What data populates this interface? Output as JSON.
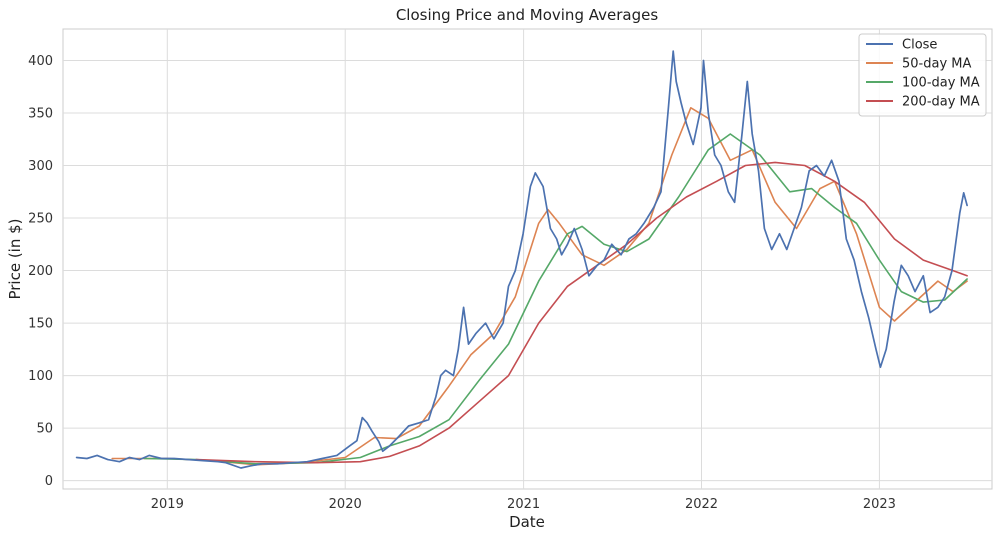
{
  "chart_data": {
    "type": "line",
    "title": "Closing Price and Moving Averages",
    "xlabel": "Date",
    "ylabel": "Price (in $)",
    "x_ticks": [
      "2019",
      "2020",
      "2021",
      "2022",
      "2023"
    ],
    "y_ticks": [
      0,
      50,
      100,
      150,
      200,
      250,
      300,
      350,
      400
    ],
    "xlim": [
      "2018-06-01",
      "2023-08-20"
    ],
    "ylim": [
      -8,
      430
    ],
    "grid": true,
    "legend_position": "top-right",
    "series": [
      {
        "name": "Close",
        "color": "#4c72b0",
        "points": [
          [
            "2018-06-29",
            22
          ],
          [
            "2018-07-20",
            21
          ],
          [
            "2018-08-10",
            24
          ],
          [
            "2018-09-01",
            20
          ],
          [
            "2018-09-25",
            18
          ],
          [
            "2018-10-15",
            22
          ],
          [
            "2018-11-05",
            20
          ],
          [
            "2018-11-25",
            24
          ],
          [
            "2018-12-20",
            21
          ],
          [
            "2019-01-15",
            21
          ],
          [
            "2019-02-15",
            20
          ],
          [
            "2019-03-15",
            19
          ],
          [
            "2019-04-15",
            18
          ],
          [
            "2019-05-01",
            17
          ],
          [
            "2019-06-01",
            12
          ],
          [
            "2019-06-20",
            14
          ],
          [
            "2019-07-15",
            16
          ],
          [
            "2019-08-15",
            16
          ],
          [
            "2019-09-15",
            17
          ],
          [
            "2019-10-15",
            18
          ],
          [
            "2019-11-15",
            21
          ],
          [
            "2019-12-15",
            24
          ],
          [
            "2020-01-10",
            33
          ],
          [
            "2020-01-25",
            38
          ],
          [
            "2020-02-05",
            60
          ],
          [
            "2020-02-15",
            55
          ],
          [
            "2020-02-25",
            47
          ],
          [
            "2020-03-10",
            37
          ],
          [
            "2020-03-18",
            28
          ],
          [
            "2020-04-01",
            33
          ],
          [
            "2020-04-20",
            42
          ],
          [
            "2020-05-10",
            52
          ],
          [
            "2020-06-01",
            55
          ],
          [
            "2020-06-20",
            58
          ],
          [
            "2020-07-05",
            80
          ],
          [
            "2020-07-15",
            100
          ],
          [
            "2020-07-25",
            105
          ],
          [
            "2020-08-10",
            100
          ],
          [
            "2020-08-20",
            125
          ],
          [
            "2020-08-31",
            165
          ],
          [
            "2020-09-10",
            130
          ],
          [
            "2020-09-25",
            140
          ],
          [
            "2020-10-15",
            150
          ],
          [
            "2020-11-01",
            135
          ],
          [
            "2020-11-20",
            150
          ],
          [
            "2020-12-01",
            185
          ],
          [
            "2020-12-15",
            200
          ],
          [
            "2020-12-31",
            235
          ],
          [
            "2021-01-15",
            280
          ],
          [
            "2021-01-25",
            293
          ],
          [
            "2021-02-10",
            280
          ],
          [
            "2021-02-25",
            240
          ],
          [
            "2021-03-10",
            230
          ],
          [
            "2021-03-20",
            215
          ],
          [
            "2021-04-01",
            225
          ],
          [
            "2021-04-15",
            240
          ],
          [
            "2021-05-01",
            220
          ],
          [
            "2021-05-15",
            195
          ],
          [
            "2021-06-01",
            205
          ],
          [
            "2021-06-15",
            210
          ],
          [
            "2021-07-01",
            225
          ],
          [
            "2021-07-20",
            215
          ],
          [
            "2021-08-05",
            230
          ],
          [
            "2021-08-20",
            235
          ],
          [
            "2021-09-05",
            245
          ],
          [
            "2021-09-25",
            260
          ],
          [
            "2021-10-10",
            275
          ],
          [
            "2021-10-25",
            355
          ],
          [
            "2021-11-04",
            409
          ],
          [
            "2021-11-10",
            380
          ],
          [
            "2021-11-20",
            360
          ],
          [
            "2021-12-01",
            340
          ],
          [
            "2021-12-15",
            320
          ],
          [
            "2021-12-31",
            355
          ],
          [
            "2022-01-05",
            400
          ],
          [
            "2022-01-15",
            350
          ],
          [
            "2022-01-28",
            310
          ],
          [
            "2022-02-10",
            300
          ],
          [
            "2022-02-25",
            275
          ],
          [
            "2022-03-10",
            265
          ],
          [
            "2022-03-25",
            330
          ],
          [
            "2022-04-05",
            380
          ],
          [
            "2022-04-15",
            330
          ],
          [
            "2022-04-28",
            295
          ],
          [
            "2022-05-10",
            240
          ],
          [
            "2022-05-25",
            220
          ],
          [
            "2022-06-10",
            235
          ],
          [
            "2022-06-25",
            220
          ],
          [
            "2022-07-10",
            240
          ],
          [
            "2022-07-25",
            260
          ],
          [
            "2022-08-10",
            295
          ],
          [
            "2022-08-25",
            300
          ],
          [
            "2022-09-10",
            290
          ],
          [
            "2022-09-25",
            305
          ],
          [
            "2022-10-10",
            285
          ],
          [
            "2022-10-25",
            230
          ],
          [
            "2022-11-10",
            210
          ],
          [
            "2022-11-25",
            180
          ],
          [
            "2022-12-10",
            155
          ],
          [
            "2022-12-25",
            125
          ],
          [
            "2023-01-03",
            108
          ],
          [
            "2023-01-15",
            125
          ],
          [
            "2023-01-31",
            170
          ],
          [
            "2023-02-15",
            205
          ],
          [
            "2023-03-01",
            195
          ],
          [
            "2023-03-15",
            180
          ],
          [
            "2023-04-01",
            195
          ],
          [
            "2023-04-15",
            160
          ],
          [
            "2023-05-01",
            165
          ],
          [
            "2023-05-15",
            175
          ],
          [
            "2023-05-30",
            200
          ],
          [
            "2023-06-15",
            255
          ],
          [
            "2023-06-23",
            274
          ],
          [
            "2023-06-30",
            262
          ]
        ]
      },
      {
        "name": "50-day MA",
        "color": "#dd8452",
        "points": [
          [
            "2018-09-10",
            21
          ],
          [
            "2019-01-01",
            21
          ],
          [
            "2019-04-01",
            19
          ],
          [
            "2019-07-01",
            15
          ],
          [
            "2019-10-01",
            17
          ],
          [
            "2020-01-01",
            22
          ],
          [
            "2020-03-01",
            41
          ],
          [
            "2020-04-15",
            40
          ],
          [
            "2020-06-01",
            52
          ],
          [
            "2020-08-01",
            90
          ],
          [
            "2020-09-15",
            120
          ],
          [
            "2020-11-01",
            140
          ],
          [
            "2020-12-15",
            175
          ],
          [
            "2021-02-01",
            245
          ],
          [
            "2021-02-20",
            258
          ],
          [
            "2021-03-15",
            245
          ],
          [
            "2021-05-01",
            215
          ],
          [
            "2021-06-15",
            205
          ],
          [
            "2021-08-01",
            220
          ],
          [
            "2021-09-15",
            245
          ],
          [
            "2021-11-01",
            310
          ],
          [
            "2021-12-10",
            355
          ],
          [
            "2022-01-15",
            345
          ],
          [
            "2022-03-01",
            305
          ],
          [
            "2022-04-15",
            315
          ],
          [
            "2022-06-01",
            265
          ],
          [
            "2022-07-15",
            240
          ],
          [
            "2022-09-01",
            278
          ],
          [
            "2022-10-01",
            285
          ],
          [
            "2022-11-15",
            235
          ],
          [
            "2023-01-01",
            165
          ],
          [
            "2023-02-01",
            152
          ],
          [
            "2023-03-15",
            170
          ],
          [
            "2023-05-01",
            190
          ],
          [
            "2023-06-01",
            180
          ],
          [
            "2023-06-30",
            190
          ]
        ]
      },
      {
        "name": "100-day MA",
        "color": "#55a868",
        "points": [
          [
            "2018-11-15",
            21
          ],
          [
            "2019-03-01",
            20
          ],
          [
            "2019-07-01",
            16
          ],
          [
            "2019-11-01",
            17
          ],
          [
            "2020-02-01",
            22
          ],
          [
            "2020-04-01",
            33
          ],
          [
            "2020-06-01",
            42
          ],
          [
            "2020-08-01",
            58
          ],
          [
            "2020-10-01",
            95
          ],
          [
            "2020-12-01",
            130
          ],
          [
            "2021-02-01",
            190
          ],
          [
            "2021-04-01",
            235
          ],
          [
            "2021-05-01",
            242
          ],
          [
            "2021-06-15",
            225
          ],
          [
            "2021-08-01",
            218
          ],
          [
            "2021-09-15",
            230
          ],
          [
            "2021-11-15",
            270
          ],
          [
            "2022-01-15",
            315
          ],
          [
            "2022-03-01",
            330
          ],
          [
            "2022-05-01",
            310
          ],
          [
            "2022-07-01",
            275
          ],
          [
            "2022-08-15",
            278
          ],
          [
            "2022-10-01",
            260
          ],
          [
            "2022-11-15",
            245
          ],
          [
            "2023-01-01",
            210
          ],
          [
            "2023-02-15",
            180
          ],
          [
            "2023-04-01",
            170
          ],
          [
            "2023-05-15",
            172
          ],
          [
            "2023-06-30",
            192
          ]
        ]
      },
      {
        "name": "200-day MA",
        "color": "#c44e52",
        "points": [
          [
            "2019-03-01",
            20
          ],
          [
            "2019-07-01",
            18
          ],
          [
            "2019-11-01",
            17
          ],
          [
            "2020-02-01",
            18
          ],
          [
            "2020-04-01",
            23
          ],
          [
            "2020-06-01",
            33
          ],
          [
            "2020-08-01",
            50
          ],
          [
            "2020-10-01",
            75
          ],
          [
            "2020-12-01",
            100
          ],
          [
            "2021-02-01",
            150
          ],
          [
            "2021-04-01",
            185
          ],
          [
            "2021-06-01",
            205
          ],
          [
            "2021-08-01",
            225
          ],
          [
            "2021-10-01",
            250
          ],
          [
            "2021-12-01",
            270
          ],
          [
            "2022-02-01",
            285
          ],
          [
            "2022-04-01",
            300
          ],
          [
            "2022-06-01",
            303
          ],
          [
            "2022-08-01",
            300
          ],
          [
            "2022-10-01",
            285
          ],
          [
            "2022-12-01",
            265
          ],
          [
            "2023-02-01",
            230
          ],
          [
            "2023-04-01",
            210
          ],
          [
            "2023-06-01",
            200
          ],
          [
            "2023-06-30",
            195
          ]
        ]
      }
    ]
  }
}
